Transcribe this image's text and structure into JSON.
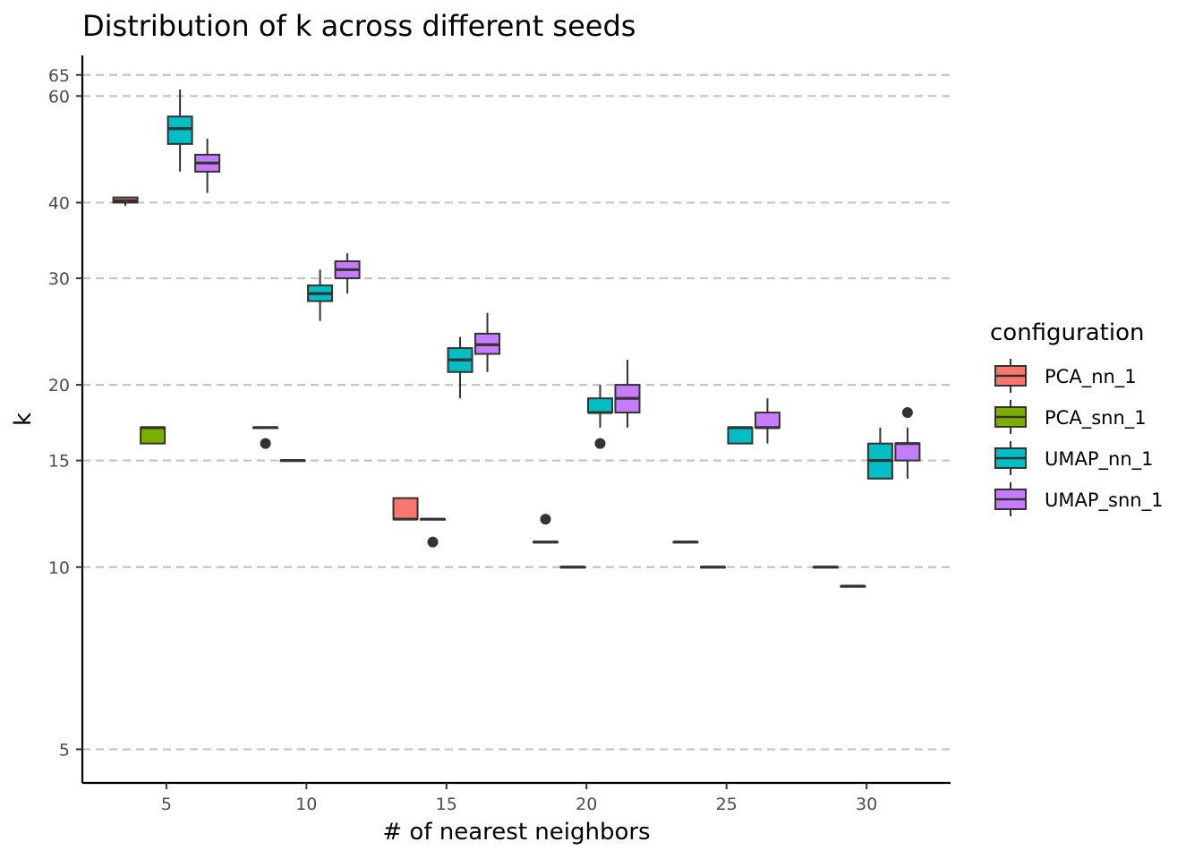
{
  "chart_data": {
    "type": "boxplot",
    "title": "Distribution of k across different seeds",
    "xlabel": "# of nearest neighbors",
    "ylabel": "k",
    "y_scale": "log",
    "ylim": [
      4.4,
      70
    ],
    "y_ticks": [
      5,
      10,
      15,
      20,
      30,
      40,
      60,
      65
    ],
    "x_ticks": [
      5,
      10,
      15,
      20,
      25,
      30
    ],
    "xlim": [
      2,
      33
    ],
    "grid": {
      "major_y": true,
      "style": "dashed"
    },
    "legend": {
      "title": "configuration",
      "position": "right"
    },
    "series": [
      {
        "name": "PCA_nn_1",
        "color": "#F8766D",
        "boxes": [
          {
            "x": 5,
            "min": 39.5,
            "q1": 40,
            "median": 40.3,
            "q3": 40.8,
            "max": 40.8,
            "outliers": []
          },
          {
            "x": 10,
            "min": 17,
            "q1": 17,
            "median": 17,
            "q3": 17,
            "max": 17,
            "outliers": [
              16
            ]
          },
          {
            "x": 15,
            "min": 12,
            "q1": 12,
            "median": 12,
            "q3": 13,
            "max": 13,
            "outliers": []
          },
          {
            "x": 20,
            "min": 11,
            "q1": 11,
            "median": 11,
            "q3": 11,
            "max": 11,
            "outliers": [
              12
            ]
          },
          {
            "x": 25,
            "min": 11,
            "q1": 11,
            "median": 11,
            "q3": 11,
            "max": 11,
            "outliers": []
          },
          {
            "x": 30,
            "min": 10,
            "q1": 10,
            "median": 10,
            "q3": 10,
            "max": 10,
            "outliers": []
          }
        ]
      },
      {
        "name": "PCA_snn_1",
        "color": "#7CAE00",
        "boxes": [
          {
            "x": 5,
            "min": 16,
            "q1": 16,
            "median": 17,
            "q3": 17,
            "max": 17,
            "outliers": []
          },
          {
            "x": 10,
            "min": 15,
            "q1": 15,
            "median": 15,
            "q3": 15,
            "max": 15,
            "outliers": []
          },
          {
            "x": 15,
            "min": 12,
            "q1": 12,
            "median": 12,
            "q3": 12,
            "max": 12,
            "outliers": [
              11
            ]
          },
          {
            "x": 20,
            "min": 10,
            "q1": 10,
            "median": 10,
            "q3": 10,
            "max": 10,
            "outliers": []
          },
          {
            "x": 25,
            "min": 10,
            "q1": 10,
            "median": 10,
            "q3": 10,
            "max": 10,
            "outliers": []
          },
          {
            "x": 30,
            "min": 9.3,
            "q1": 9.3,
            "median": 9.3,
            "q3": 9.3,
            "max": 9.3,
            "outliers": []
          }
        ]
      },
      {
        "name": "UMAP_nn_1",
        "color": "#00BFC4",
        "boxes": [
          {
            "x": 5,
            "min": 45,
            "q1": 50,
            "median": 53,
            "q3": 55.5,
            "max": 61.5,
            "outliers": []
          },
          {
            "x": 10,
            "min": 25.5,
            "q1": 27.5,
            "median": 28.3,
            "q3": 29.2,
            "max": 31,
            "outliers": []
          },
          {
            "x": 15,
            "min": 19,
            "q1": 21,
            "median": 22,
            "q3": 23,
            "max": 24,
            "outliers": []
          },
          {
            "x": 20,
            "min": 17,
            "q1": 18,
            "median": 18,
            "q3": 19,
            "max": 20,
            "outliers": [
              16
            ]
          },
          {
            "x": 25,
            "min": 16,
            "q1": 16,
            "median": 17,
            "q3": 17,
            "max": 17,
            "outliers": []
          },
          {
            "x": 30,
            "min": 14,
            "q1": 14,
            "median": 15,
            "q3": 16,
            "max": 17,
            "outliers": []
          }
        ]
      },
      {
        "name": "UMAP_snn_1",
        "color": "#C77CFF",
        "boxes": [
          {
            "x": 5,
            "min": 41.5,
            "q1": 45,
            "median": 46.5,
            "q3": 48,
            "max": 51,
            "outliers": []
          },
          {
            "x": 10,
            "min": 28.3,
            "q1": 30,
            "median": 31,
            "q3": 32,
            "max": 33,
            "outliers": []
          },
          {
            "x": 15,
            "min": 21,
            "q1": 22.5,
            "median": 23.3,
            "q3": 24.3,
            "max": 26.3,
            "outliers": []
          },
          {
            "x": 20,
            "min": 17,
            "q1": 18,
            "median": 19,
            "q3": 20,
            "max": 22,
            "outliers": []
          },
          {
            "x": 25,
            "min": 16,
            "q1": 17,
            "median": 17,
            "q3": 18,
            "max": 19,
            "outliers": []
          },
          {
            "x": 30,
            "min": 14,
            "q1": 15,
            "median": 16,
            "q3": 16,
            "max": 17,
            "outliers": [
              18
            ]
          }
        ]
      }
    ]
  }
}
